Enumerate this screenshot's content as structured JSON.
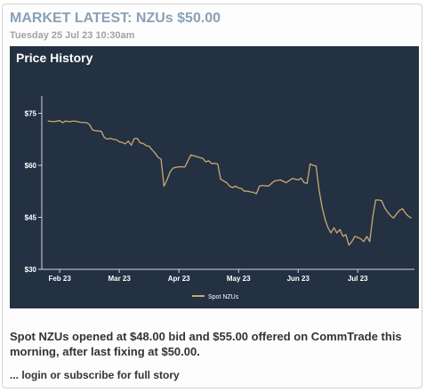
{
  "article": {
    "headline": "MARKET LATEST: NZUs $50.00",
    "dateline": "Tuesday 25 Jul 23 10:30am",
    "body": "Spot NZUs opened at $48.00 bid and $55.00 offered on CommTrade this morning, after last fixing at $50.00.",
    "cta": "... login or subscribe for full story"
  },
  "colors": {
    "headline": "#8aa0b8",
    "panel_bg": "#243142",
    "series_line": "#c8aa72",
    "axis": "#cfd6de"
  },
  "chart_data": {
    "type": "line",
    "title": "Price History",
    "xlabel": "",
    "ylabel": "",
    "x_ticks": [
      "Feb 23",
      "Mar 23",
      "Apr 23",
      "May 23",
      "Jun 23",
      "Jul 23"
    ],
    "y_ticks": [
      "$75",
      "$60",
      "$45",
      "$30"
    ],
    "ylim": [
      30,
      80
    ],
    "xlim": [
      0,
      5.95
    ],
    "grid": false,
    "legend": "bottom-center",
    "series": [
      {
        "name": "Spot NZUs",
        "x": [
          -0.2,
          -0.1,
          0,
          0.05,
          0.1,
          0.15,
          0.25,
          0.35,
          0.45,
          0.5,
          0.55,
          0.6,
          0.7,
          0.75,
          0.8,
          0.85,
          0.9,
          0.95,
          1,
          1.05,
          1.1,
          1.15,
          1.2,
          1.25,
          1.3,
          1.35,
          1.4,
          1.45,
          1.5,
          1.55,
          1.6,
          1.65,
          1.7,
          1.75,
          1.8,
          1.85,
          1.9,
          1.95,
          2,
          2.1,
          2.2,
          2.3,
          2.4,
          2.45,
          2.5,
          2.55,
          2.6,
          2.65,
          2.7,
          2.75,
          2.8,
          2.85,
          2.9,
          2.95,
          3,
          3.05,
          3.1,
          3.15,
          3.2,
          3.25,
          3.3,
          3.35,
          3.4,
          3.5,
          3.6,
          3.7,
          3.8,
          3.9,
          4,
          4.05,
          4.1,
          4.15,
          4.2,
          4.25,
          4.3,
          4.35,
          4.4,
          4.45,
          4.5,
          4.55,
          4.6,
          4.65,
          4.7,
          4.75,
          4.8,
          4.85,
          4.9,
          4.95,
          5,
          5.05,
          5.1,
          5.15,
          5.2,
          5.25,
          5.3,
          5.35,
          5.4,
          5.45,
          5.5,
          5.55,
          5.6,
          5.65,
          5.7,
          5.75,
          5.8,
          5.85,
          5.9
        ],
        "y": [
          72.8,
          72.6,
          72.9,
          72.3,
          72.8,
          72.6,
          72.8,
          72.4,
          72.3,
          71.8,
          70.2,
          70,
          69.8,
          68,
          67.6,
          67.8,
          67.5,
          67.4,
          66.8,
          66.6,
          66.2,
          67,
          65.8,
          67.7,
          67.8,
          66.5,
          66.3,
          65.7,
          65.5,
          64.5,
          63.5,
          62.3,
          61.8,
          54,
          55.8,
          58,
          59.2,
          59.4,
          59.6,
          59.5,
          63,
          62.5,
          62,
          61,
          61.3,
          60.5,
          60.6,
          60.4,
          56,
          55.5,
          55,
          54,
          53.6,
          54,
          53.5,
          53.3,
          52.5,
          52.6,
          52.3,
          52.2,
          51.8,
          54,
          54.2,
          54,
          55.5,
          55.8,
          55,
          56.2,
          55.8,
          56.3,
          55,
          54.8,
          60.4,
          60,
          59.8,
          53,
          48,
          44.5,
          42,
          40.5,
          42,
          40.5,
          41.5,
          39.5,
          40,
          37,
          38,
          39.5,
          39.2,
          38.8,
          38,
          39.5,
          38,
          45,
          50,
          50,
          49.8,
          47.8,
          46.5,
          45.5,
          44.8,
          46,
          47,
          47.5,
          46.2,
          45.3,
          44.8
        ]
      }
    ]
  }
}
